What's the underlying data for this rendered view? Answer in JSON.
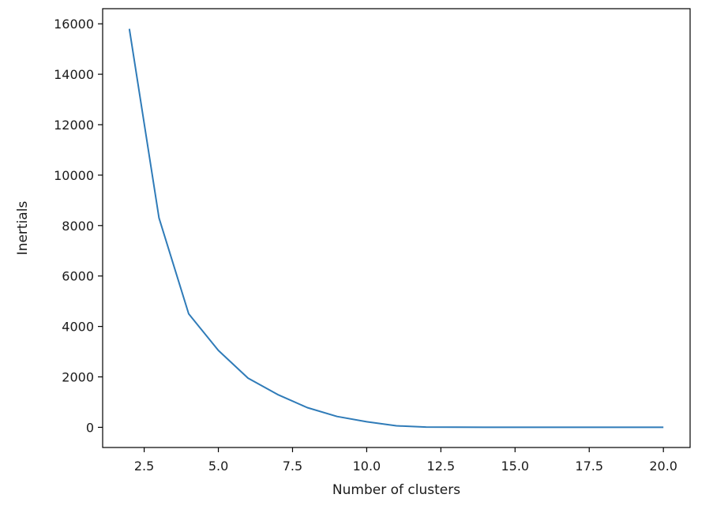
{
  "colors": {
    "line": "#2f7bb8",
    "axes": "#000000",
    "text": "#1a1a1a",
    "background": "#ffffff"
  },
  "chart_data": {
    "type": "line",
    "title": "",
    "xlabel": "Number of clusters",
    "ylabel": "Inertials",
    "xlim": [
      1.1,
      20.9
    ],
    "ylim": [
      -800,
      16600
    ],
    "xticks": [
      2.5,
      5.0,
      7.5,
      10.0,
      12.5,
      15.0,
      17.5,
      20.0
    ],
    "xtick_labels": [
      "2.5",
      "5.0",
      "7.5",
      "10.0",
      "12.5",
      "15.0",
      "17.5",
      "20.0"
    ],
    "yticks": [
      0,
      2000,
      4000,
      6000,
      8000,
      10000,
      12000,
      14000,
      16000
    ],
    "ytick_labels": [
      "0",
      "2000",
      "4000",
      "6000",
      "8000",
      "10000",
      "12000",
      "14000",
      "16000"
    ],
    "grid": false,
    "series": [
      {
        "x": [
          2,
          3,
          4,
          5,
          6,
          7,
          8,
          9,
          10,
          11,
          12,
          13,
          14,
          15,
          16,
          17,
          18,
          19,
          20
        ],
        "y": [
          15800,
          8300,
          4500,
          3050,
          1950,
          1300,
          780,
          430,
          220,
          60,
          10,
          5,
          3,
          2,
          1,
          1,
          1,
          1,
          1
        ]
      }
    ]
  }
}
